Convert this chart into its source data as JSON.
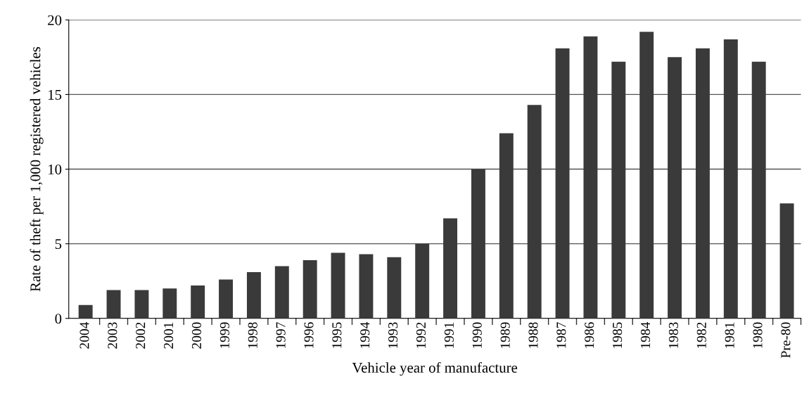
{
  "chart_data": {
    "type": "bar",
    "xlabel": "Vehicle year of manufacture",
    "ylabel": "Rate of theft per 1,000 registered vehicles",
    "categories": [
      "2004",
      "2003",
      "2002",
      "2001",
      "2000",
      "1999",
      "1998",
      "1997",
      "1996",
      "1995",
      "1994",
      "1993",
      "1992",
      "1991",
      "1990",
      "1989",
      "1988",
      "1987",
      "1986",
      "1985",
      "1984",
      "1983",
      "1982",
      "1981",
      "1980",
      "Pre-80"
    ],
    "values": [
      0.9,
      1.9,
      1.9,
      2.0,
      2.2,
      2.6,
      3.1,
      3.5,
      3.9,
      4.4,
      4.3,
      4.1,
      5.0,
      6.7,
      10.0,
      12.4,
      14.3,
      18.1,
      18.9,
      17.2,
      19.2,
      17.5,
      18.1,
      18.7,
      17.2,
      7.7
    ],
    "color": "#3a3a3a",
    "ylim": [
      0,
      20
    ],
    "yticks": [
      0,
      5,
      10,
      15,
      20
    ],
    "grid": "y"
  }
}
